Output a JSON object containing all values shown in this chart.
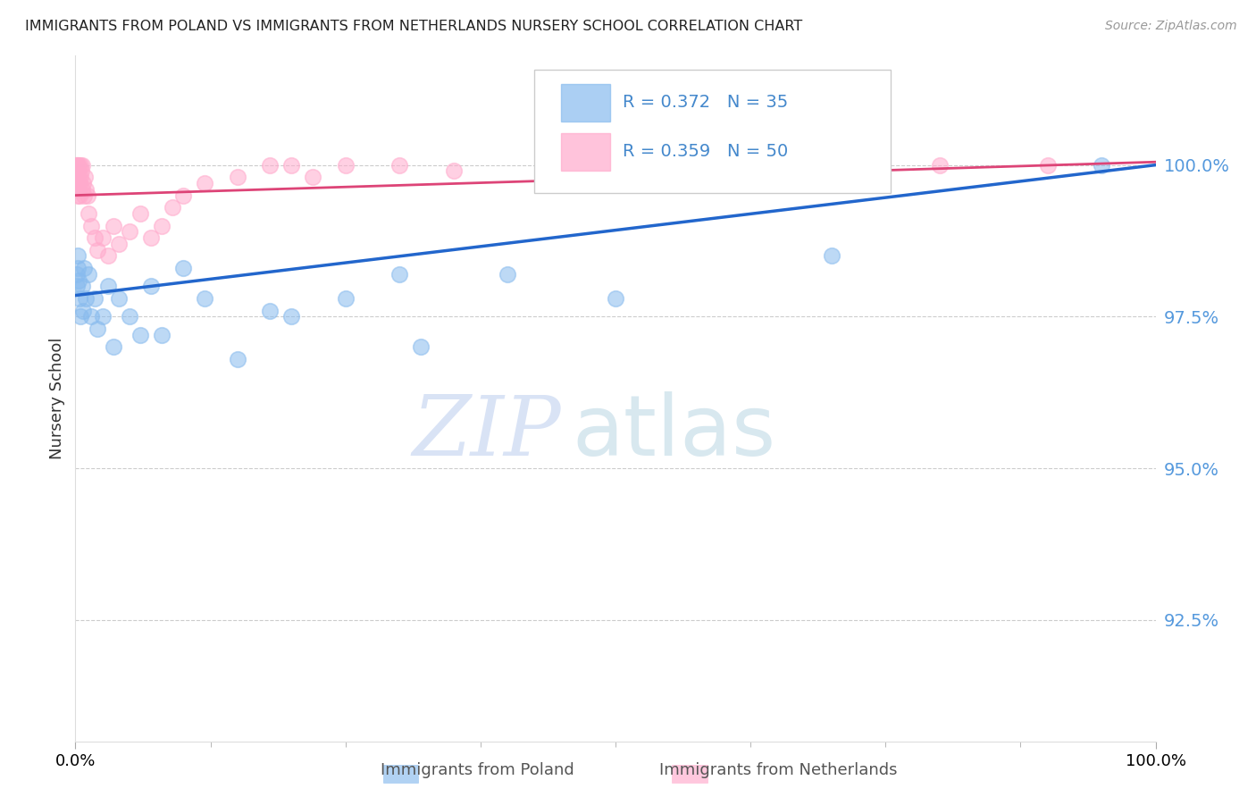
{
  "title": "IMMIGRANTS FROM POLAND VS IMMIGRANTS FROM NETHERLANDS NURSERY SCHOOL CORRELATION CHART",
  "source": "Source: ZipAtlas.com",
  "ylabel": "Nursery School",
  "y_tick_values": [
    92.5,
    95.0,
    97.5,
    100.0
  ],
  "xlim": [
    0.0,
    100.0
  ],
  "ylim": [
    90.5,
    101.8
  ],
  "legend_poland_r": "R = 0.372",
  "legend_poland_n": "N = 35",
  "legend_netherlands_r": "R = 0.359",
  "legend_netherlands_n": "N = 50",
  "poland_color": "#88BBEE",
  "netherlands_color": "#FFAACC",
  "trend_poland_color": "#2266CC",
  "trend_netherlands_color": "#DD4477",
  "background_color": "#FFFFFF",
  "watermark_zip": "ZIP",
  "watermark_atlas": "atlas",
  "poland_scatter_x": [
    0.1,
    0.15,
    0.2,
    0.25,
    0.3,
    0.4,
    0.5,
    0.6,
    0.7,
    0.8,
    1.0,
    1.2,
    1.5,
    1.8,
    2.0,
    2.5,
    3.0,
    3.5,
    4.0,
    5.0,
    6.0,
    7.0,
    8.0,
    10.0,
    12.0,
    15.0,
    18.0,
    20.0,
    25.0,
    30.0,
    32.0,
    40.0,
    50.0,
    70.0,
    95.0
  ],
  "poland_scatter_y": [
    98.0,
    98.2,
    98.5,
    98.3,
    98.1,
    97.8,
    97.5,
    98.0,
    97.6,
    98.3,
    97.8,
    98.2,
    97.5,
    97.8,
    97.3,
    97.5,
    98.0,
    97.0,
    97.8,
    97.5,
    97.2,
    98.0,
    97.2,
    98.3,
    97.8,
    96.8,
    97.6,
    97.5,
    97.8,
    98.2,
    97.0,
    98.2,
    97.8,
    98.5,
    100.0
  ],
  "netherlands_scatter_x": [
    0.05,
    0.08,
    0.1,
    0.12,
    0.15,
    0.18,
    0.2,
    0.22,
    0.25,
    0.28,
    0.3,
    0.35,
    0.4,
    0.45,
    0.5,
    0.55,
    0.6,
    0.65,
    0.7,
    0.8,
    0.9,
    1.0,
    1.1,
    1.2,
    1.5,
    1.8,
    2.0,
    2.5,
    3.0,
    3.5,
    4.0,
    5.0,
    6.0,
    7.0,
    8.0,
    9.0,
    10.0,
    12.0,
    15.0,
    18.0,
    20.0,
    22.0,
    25.0,
    30.0,
    35.0,
    50.0,
    60.0,
    70.0,
    80.0,
    90.0
  ],
  "netherlands_scatter_y": [
    99.8,
    100.0,
    99.9,
    100.0,
    99.7,
    99.5,
    100.0,
    99.8,
    99.6,
    99.8,
    100.0,
    99.7,
    99.5,
    100.0,
    99.8,
    99.9,
    99.6,
    100.0,
    99.7,
    99.5,
    99.8,
    99.6,
    99.5,
    99.2,
    99.0,
    98.8,
    98.6,
    98.8,
    98.5,
    99.0,
    98.7,
    98.9,
    99.2,
    98.8,
    99.0,
    99.3,
    99.5,
    99.7,
    99.8,
    100.0,
    100.0,
    99.8,
    100.0,
    100.0,
    99.9,
    100.0,
    99.8,
    100.0,
    100.0,
    100.0
  ],
  "trend_poland_x0": 0.0,
  "trend_poland_y0": 97.85,
  "trend_poland_x1": 100.0,
  "trend_poland_y1": 100.0,
  "trend_netherlands_x0": 0.0,
  "trend_netherlands_y0": 99.5,
  "trend_netherlands_x1": 100.0,
  "trend_netherlands_y1": 100.05
}
